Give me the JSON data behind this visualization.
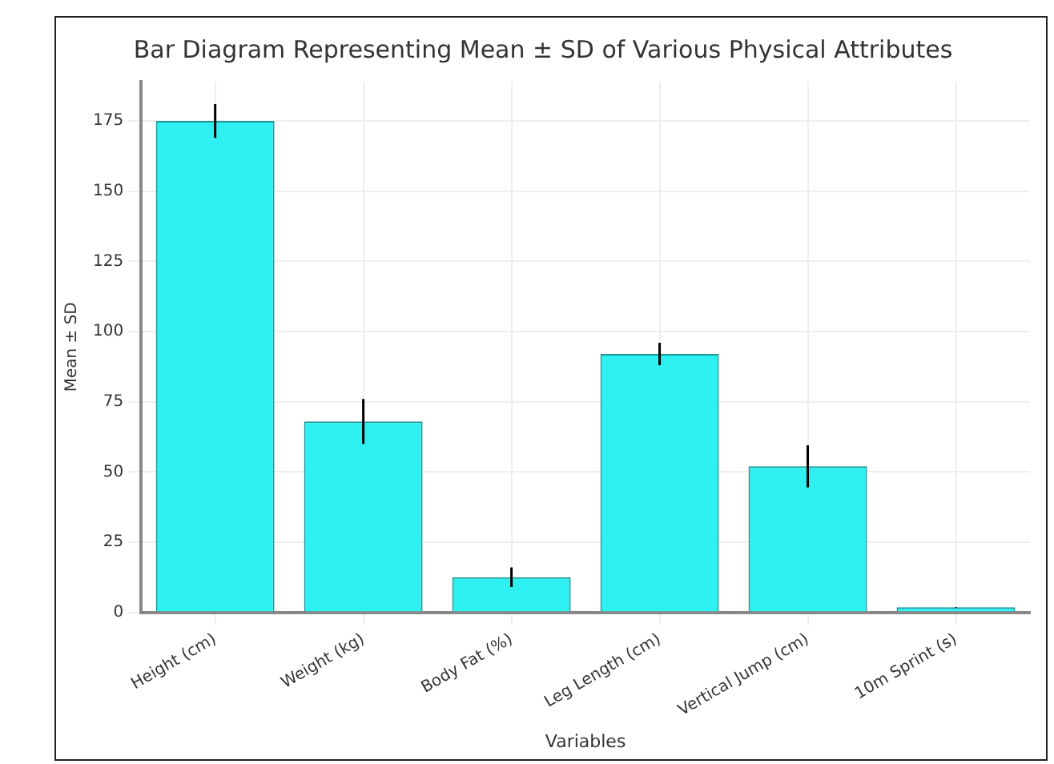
{
  "chart_data": {
    "type": "bar",
    "title": "Bar Diagram Representing Mean ± SD of Various Physical Attributes",
    "xlabel": "Variables",
    "ylabel": "Mean ± SD",
    "categories": [
      "Height (cm)",
      "Weight (kg)",
      "Body Fat (%)",
      "Leg Length (cm)",
      "Vertical Jump (cm)",
      "10m Sprint (s)"
    ],
    "values": [
      175,
      68,
      12.5,
      92,
      52,
      1.8
    ],
    "errors": [
      6,
      8,
      3.5,
      4,
      7.5,
      0.1
    ],
    "color": "#2ef0f0",
    "ylim": [
      0,
      189
    ],
    "yticks": [
      0,
      25,
      50,
      75,
      100,
      125,
      150,
      175
    ],
    "grid": true
  }
}
